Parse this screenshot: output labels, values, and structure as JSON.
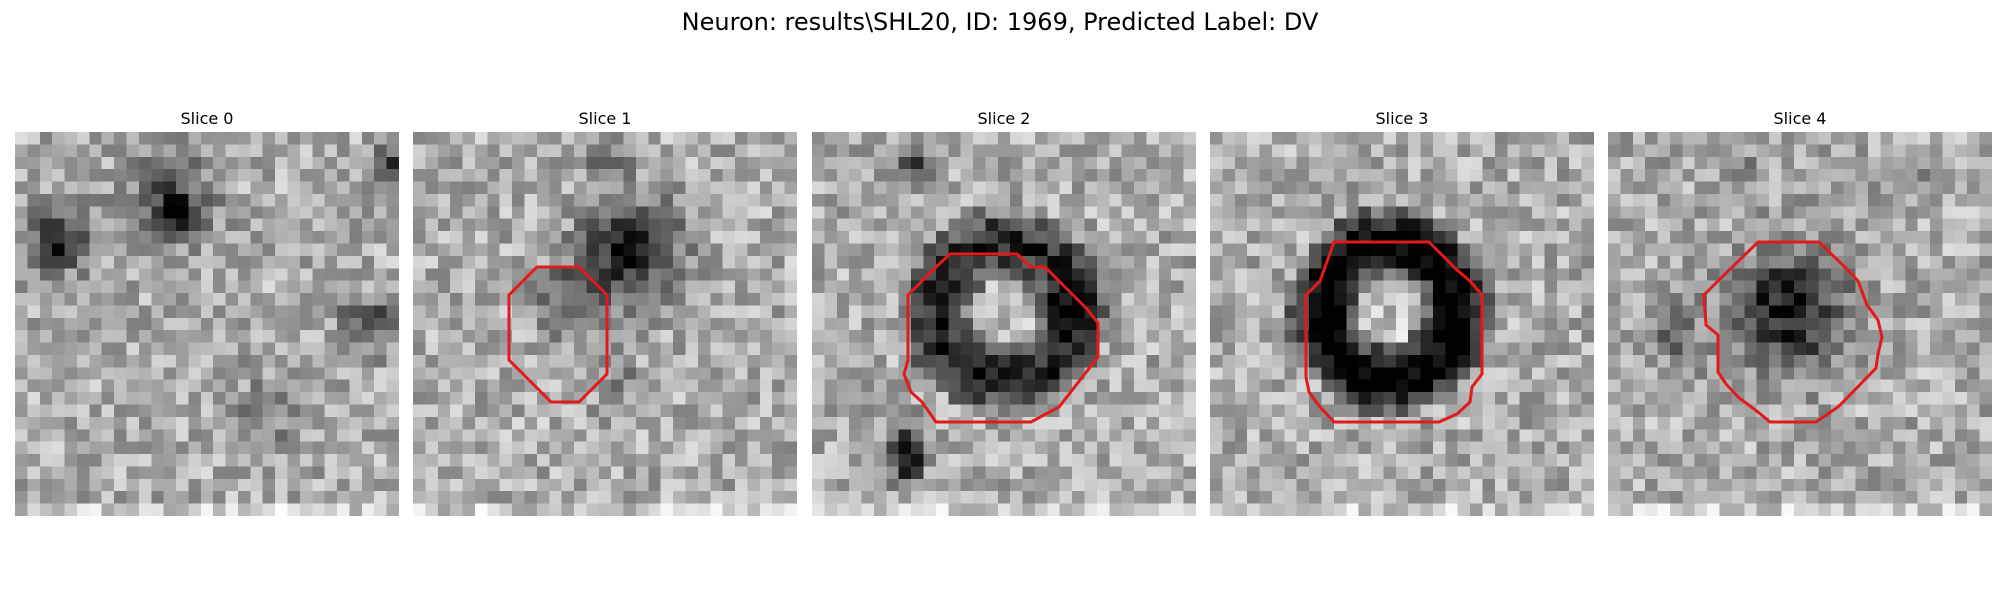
{
  "figure": {
    "title": "Neuron: results\\SHL20, ID: 1969, Predicted Label: DV",
    "contour_color": "#e31a1c"
  },
  "panels": [
    {
      "title": "Slice 0"
    },
    {
      "title": "Slice 1"
    },
    {
      "title": "Slice 2"
    },
    {
      "title": "Slice 3"
    },
    {
      "title": "Slice 4"
    }
  ]
}
